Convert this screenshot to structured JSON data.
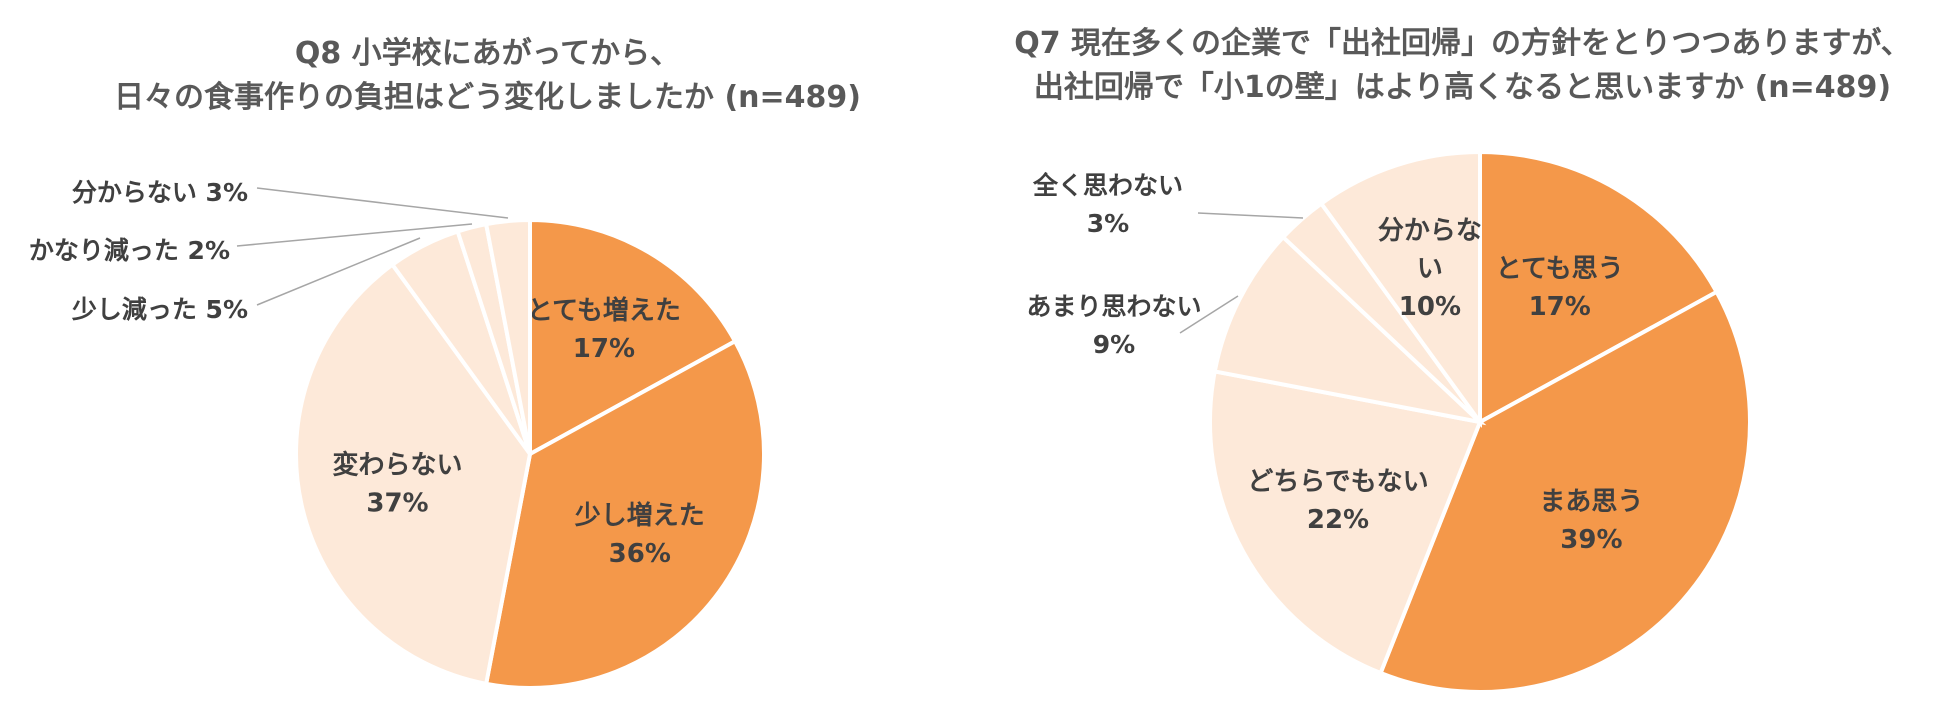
{
  "colors": {
    "dark": "#f4984a",
    "light": "#fde9d9",
    "label": "#404040",
    "title": "#595959"
  },
  "chart_data": [
    {
      "type": "pie",
      "title_lines": [
        "Q8 小学校にあがってから、",
        "日々の食事作りの負担はどう変化しましたか (n=489)"
      ],
      "slices": [
        {
          "label": "とても増えた",
          "value": 17,
          "value_label": "17%",
          "color": "dark",
          "label_pos": "inside"
        },
        {
          "label": "少し増えた",
          "value": 36,
          "value_label": "36%",
          "color": "dark",
          "label_pos": "inside"
        },
        {
          "label": "変わらない",
          "value": 37,
          "value_label": "37%",
          "color": "light",
          "label_pos": "inside"
        },
        {
          "label": "少し減った",
          "value": 5,
          "value_label": "5%",
          "color": "light",
          "label_pos": "outside"
        },
        {
          "label": "かなり減った",
          "value": 2,
          "value_label": "2%",
          "color": "light",
          "label_pos": "outside"
        },
        {
          "label": "分からない",
          "value": 3,
          "value_label": "3%",
          "color": "light",
          "label_pos": "outside"
        }
      ]
    },
    {
      "type": "pie",
      "title_lines": [
        "Q7 現在多くの企業で「出社回帰」の方針をとりつつありますが、",
        "出社回帰で「小1の壁」はより高くなると思いますか (n=489)"
      ],
      "slices": [
        {
          "label": "とても思う",
          "value": 17,
          "value_label": "17%",
          "color": "dark",
          "label_pos": "inside"
        },
        {
          "label": "まあ思う",
          "value": 39,
          "value_label": "39%",
          "color": "dark",
          "label_pos": "inside"
        },
        {
          "label": "どちらでもない",
          "value": 22,
          "value_label": "22%",
          "color": "light",
          "label_pos": "inside"
        },
        {
          "label": "あまり思わない",
          "value": 9,
          "value_label": "9%",
          "color": "light",
          "label_pos": "outside"
        },
        {
          "label": "全く思わない",
          "value": 3,
          "value_label": "3%",
          "color": "light",
          "label_pos": "outside"
        },
        {
          "label": "分からない",
          "value": 10,
          "value_label": "10%",
          "color": "light",
          "label_pos": "inside-wrap",
          "label_lines": [
            "分からな",
            "い"
          ]
        }
      ]
    }
  ]
}
